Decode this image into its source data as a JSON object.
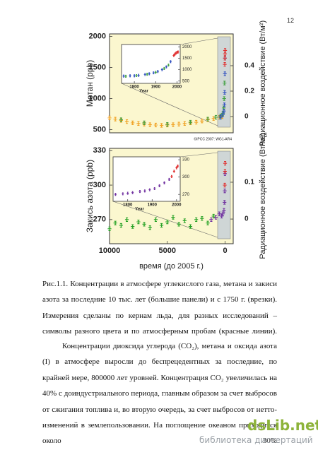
{
  "page_number": "12",
  "chart_data": [
    {
      "type": "scatter",
      "ylabel": "Метан (ppb)",
      "y2label": "Радиационное воздействие (Вт/м²)",
      "annotation": "©IPCC 2007: WG1-AR4",
      "xlim": [
        10000,
        -700
      ],
      "ylim": [
        450,
        2040
      ],
      "yticks": [
        500,
        1000,
        1500,
        2000
      ],
      "y2lim": [
        -0.128,
        0.65
      ],
      "y2ticks": [
        0,
        0.2,
        0.4
      ],
      "series": [
        {
          "color": "#f0a020",
          "x": [
            10000,
            9500,
            9000,
            8500,
            8000,
            7500,
            7000,
            6500,
            6000,
            5500,
            5000,
            4500,
            4000,
            3500,
            3000,
            2500,
            2000,
            1500,
            1000,
            500,
            250
          ],
          "values": [
            690,
            670,
            650,
            630,
            610,
            600,
            590,
            580,
            575,
            570,
            575,
            580,
            590,
            600,
            610,
            620,
            640,
            660,
            680,
            700,
            710
          ]
        },
        {
          "color": "#40a040",
          "x": [
            9000,
            7000,
            5000,
            3000,
            1500,
            800,
            400,
            200,
            120,
            80,
            50
          ],
          "values": [
            660,
            610,
            585,
            620,
            670,
            700,
            720,
            760,
            850,
            1000,
            1250
          ]
        },
        {
          "color": "#3050c0",
          "x": [
            400,
            200,
            100,
            60,
            40,
            20,
            10
          ],
          "values": [
            700,
            740,
            800,
            900,
            1100,
            1400,
            1650
          ]
        },
        {
          "color": "#e03030",
          "x": [
            30,
            20,
            10,
            0
          ],
          "values": [
            1550,
            1650,
            1720,
            1774
          ]
        }
      ]
    },
    {
      "type": "scatter",
      "xlabel": "Year",
      "xlim": [
        1740,
        2015
      ],
      "xticks": [
        1800,
        1900,
        2000
      ],
      "ylim": [
        400,
        2100
      ],
      "yticks": [
        500,
        1000,
        1500,
        2000
      ],
      "series": [
        {
          "color": "#3050c0",
          "x": [
            1750,
            1780,
            1800,
            1820,
            1850,
            1870,
            1890,
            1910,
            1930,
            1950,
            1970
          ],
          "values": [
            720,
            730,
            730,
            750,
            790,
            820,
            860,
            920,
            1000,
            1120,
            1350
          ]
        },
        {
          "color": "#40a040",
          "x": [
            1760,
            1810,
            1860,
            1900,
            1940,
            1960
          ],
          "values": [
            710,
            740,
            800,
            880,
            1050,
            1200
          ]
        },
        {
          "color": "#e03030",
          "x": [
            1985,
            1990,
            1995,
            2000,
            2005
          ],
          "values": [
            1620,
            1680,
            1720,
            1760,
            1774
          ]
        }
      ]
    },
    {
      "type": "scatter",
      "ylabel": "Закись азота (ppb)",
      "y2label": "Радиационное воздействие (Вт/м²)",
      "xlabel": "время (до 2005 г.)",
      "xlim": [
        10000,
        -700
      ],
      "xticks": [
        10000,
        5000,
        0
      ],
      "ylim": [
        249,
        332
      ],
      "yticks": [
        270,
        300,
        330
      ],
      "y2lim": [
        -0.067,
        0.192
      ],
      "y2ticks": [
        0,
        0.1
      ],
      "series": [
        {
          "color": "#20a020",
          "x": [
            10000,
            9500,
            9000,
            8500,
            8000,
            7500,
            7000,
            6500,
            6000,
            5500,
            5000,
            4500,
            4000,
            3500,
            3000,
            2500,
            2000,
            1500,
            1000
          ],
          "values": [
            262,
            267,
            265,
            270,
            264,
            268,
            266,
            263,
            270,
            265,
            268,
            272,
            266,
            269,
            264,
            270,
            271,
            267,
            273
          ]
        },
        {
          "color": "#7030a0",
          "x": [
            1200,
            800,
            500,
            300,
            200,
            100,
            50,
            30,
            10
          ],
          "values": [
            270,
            272,
            275,
            273,
            275,
            278,
            285,
            295,
            310
          ]
        },
        {
          "color": "#e03030",
          "x": [
            30,
            10,
            0
          ],
          "values": [
            300,
            312,
            319
          ]
        }
      ]
    },
    {
      "type": "scatter",
      "xlabel": "Year",
      "xlim": [
        1740,
        2015
      ],
      "xticks": [
        1800,
        1900,
        2000
      ],
      "ylim": [
        258,
        335
      ],
      "yticks": [
        270,
        300,
        330
      ],
      "series": [
        {
          "color": "#7030a0",
          "x": [
            1750,
            1780,
            1800,
            1820,
            1850,
            1870,
            1890,
            1910,
            1930,
            1950,
            1970
          ],
          "values": [
            270,
            271,
            272,
            273,
            275,
            276,
            278,
            280,
            285,
            290,
            296
          ]
        },
        {
          "color": "#e03030",
          "x": [
            1980,
            1990,
            2000,
            2005
          ],
          "values": [
            301,
            310,
            316,
            319
          ]
        }
      ]
    }
  ],
  "caption": "Рис.1.1. Концентрации в атмосфере углекислого газа, метана и закиси азота за последние 10 тыс. лет (большие панели) и с 1750 г. (врезки). Измерения сделаны по кернам льда, для разных исследований – символы разного цвета и по атмосферным пробам (красные линии).",
  "paragraphs": [
    "Концентрации диоксида углерода (CO₂), метана и оксида азота (I) в атмосфере выросли до беспрецедентных за последние, по крайней мере, 800000 лет уровней. Концентрация CO₂ увеличилась на 40% с доиндустриального периода, главным образом за счет выбросов от сжигания топлива и, во вторую очередь, за счет выбросов от нетто-изменений в землепользовании. На поглощение океаном приходится около 30%"
  ],
  "watermark": {
    "brand": "dsLib.net",
    "tagline": "библиотека диссертаций"
  }
}
